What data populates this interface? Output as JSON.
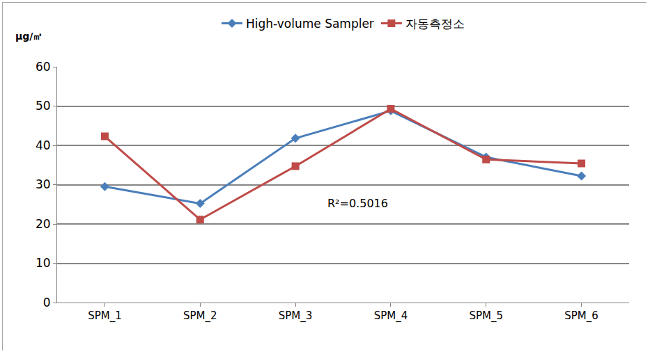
{
  "chart_data": {
    "type": "line",
    "ylabel": "μg/㎥",
    "categories": [
      "SPM_1",
      "SPM_2",
      "SPM_3",
      "SPM_4",
      "SPM_5",
      "SPM_6"
    ],
    "series": [
      {
        "name": "High-volume Sampler",
        "color": "#4a7ebb",
        "marker": "diamond",
        "values": [
          29.5,
          25.2,
          41.8,
          48.8,
          37.0,
          32.2
        ]
      },
      {
        "name": "자동측정소",
        "color": "#be4b48",
        "marker": "square",
        "values": [
          42.3,
          21.1,
          34.7,
          49.3,
          36.4,
          35.4
        ]
      }
    ],
    "annotations": [
      {
        "text": "R²=0.5016"
      }
    ],
    "ylim": [
      0,
      60
    ],
    "yticks": [
      0,
      10,
      20,
      30,
      40,
      50,
      60
    ],
    "grid": true,
    "legend": "top"
  }
}
